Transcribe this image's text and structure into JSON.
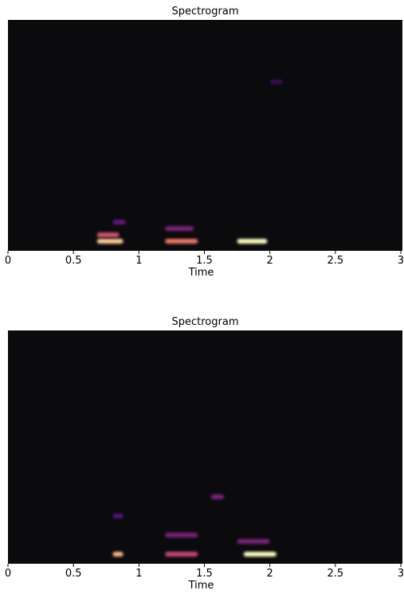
{
  "chart_data": [
    {
      "type": "spectrogram",
      "title": "Spectrogram",
      "xlabel": "Time",
      "xlim": [
        0,
        3
      ],
      "xticks": [
        0,
        0.5,
        1,
        1.5,
        2,
        2.5,
        3
      ],
      "events": [
        {
          "start": 0.68,
          "end": 0.88,
          "bin": 0,
          "intensity": 0.9
        },
        {
          "start": 0.68,
          "end": 0.85,
          "bin": 1,
          "intensity": 0.6
        },
        {
          "start": 0.8,
          "end": 0.9,
          "bin": 3,
          "intensity": 0.3
        },
        {
          "start": 1.2,
          "end": 1.45,
          "bin": 0,
          "intensity": 0.7
        },
        {
          "start": 1.2,
          "end": 1.42,
          "bin": 2,
          "intensity": 0.35
        },
        {
          "start": 1.75,
          "end": 1.98,
          "bin": 0,
          "intensity": 1.0
        },
        {
          "start": 2.0,
          "end": 2.1,
          "bin": 25,
          "intensity": 0.15
        }
      ]
    },
    {
      "type": "spectrogram",
      "title": "Spectrogram",
      "xlabel": "Time",
      "xlim": [
        0,
        3
      ],
      "xticks": [
        0,
        0.5,
        1,
        1.5,
        2,
        2.5,
        3
      ],
      "events": [
        {
          "start": 0.8,
          "end": 0.88,
          "bin": 0,
          "intensity": 0.85
        },
        {
          "start": 1.2,
          "end": 1.45,
          "bin": 0,
          "intensity": 0.55
        },
        {
          "start": 1.8,
          "end": 2.05,
          "bin": 0,
          "intensity": 1.0
        },
        {
          "start": 1.2,
          "end": 1.45,
          "bin": 3,
          "intensity": 0.35
        },
        {
          "start": 1.55,
          "end": 1.65,
          "bin": 9,
          "intensity": 0.35
        },
        {
          "start": 1.75,
          "end": 2.0,
          "bin": 2,
          "intensity": 0.35
        },
        {
          "start": 0.8,
          "end": 0.88,
          "bin": 6,
          "intensity": 0.25
        }
      ]
    }
  ]
}
